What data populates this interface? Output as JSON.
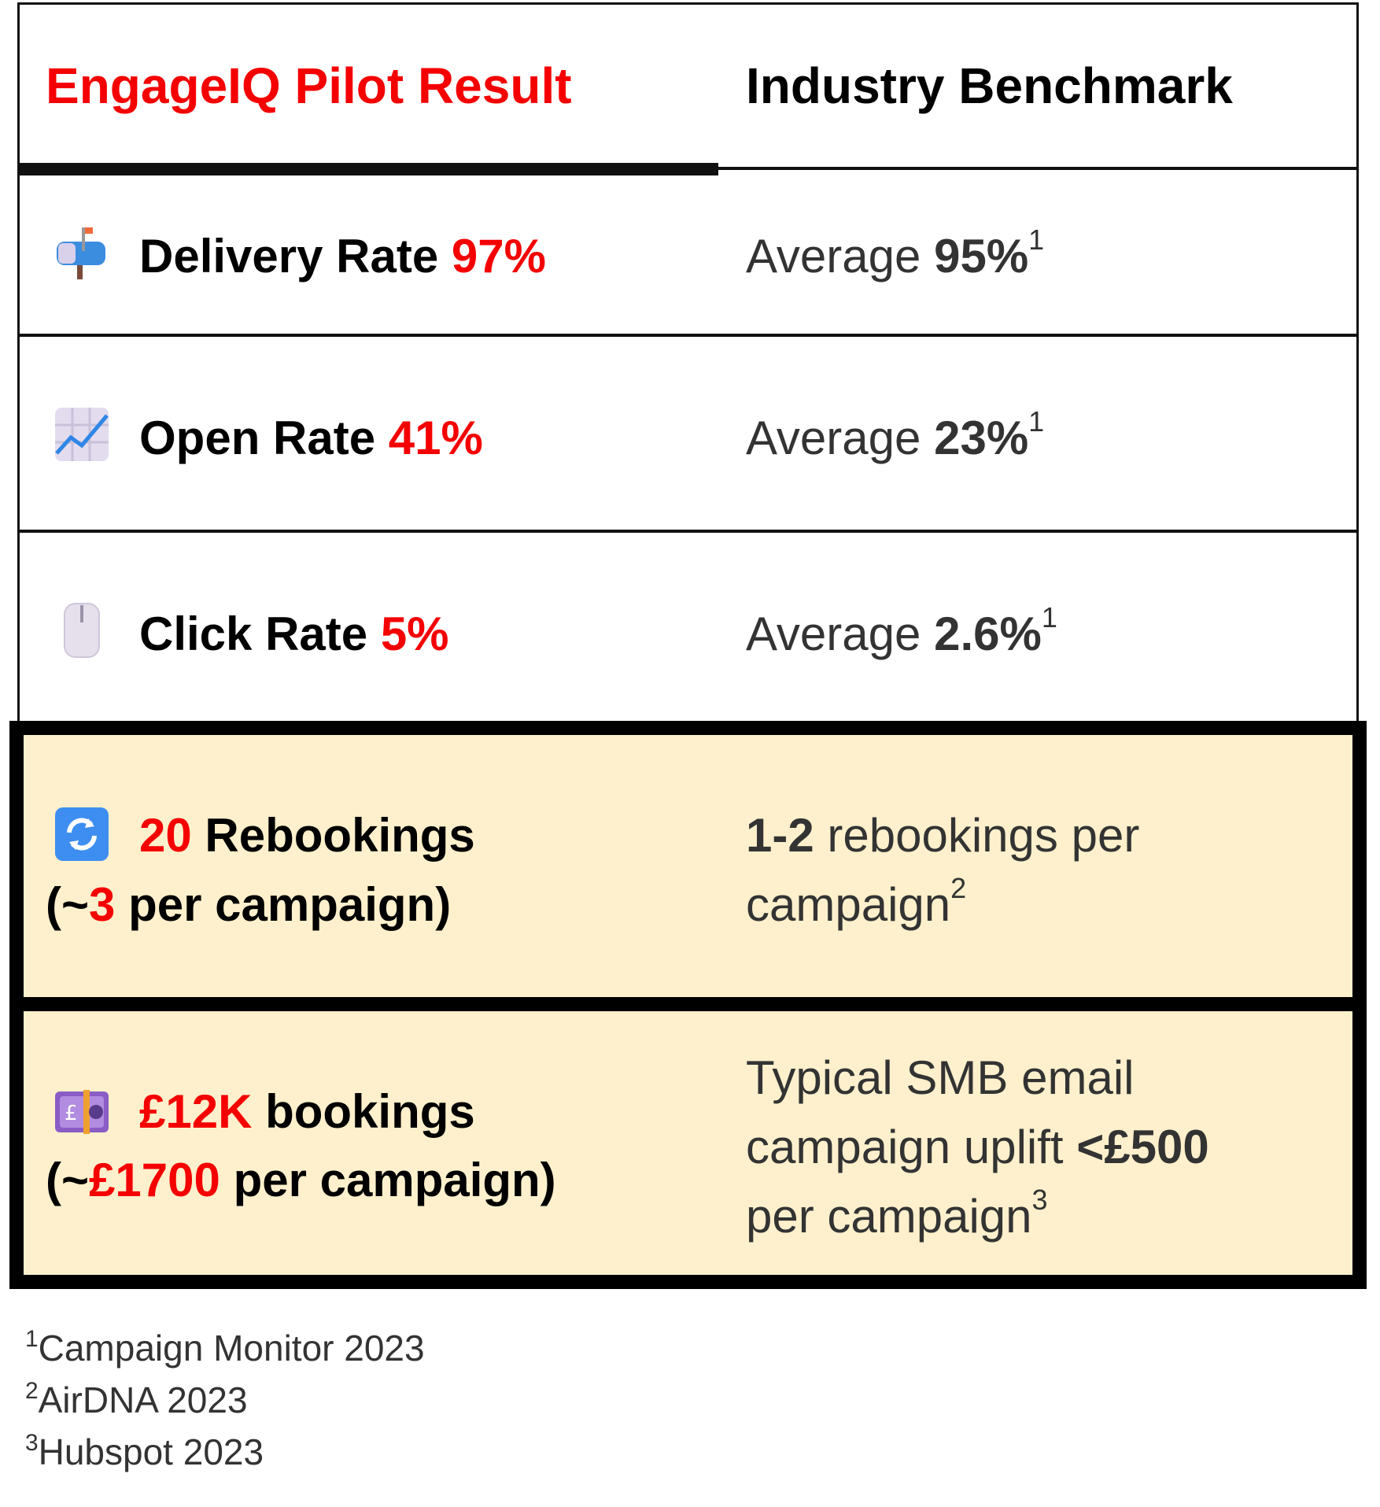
{
  "header": {
    "left_title": "EngageIQ Pilot Result",
    "right_title": "Industry Benchmark"
  },
  "rows": [
    {
      "icon": "mailbox-icon",
      "label": "Delivery Rate",
      "value": "97%",
      "bench_prefix": "Average",
      "bench_value": "95%",
      "bench_note": "1"
    },
    {
      "icon": "chart-increasing-icon",
      "label": "Open Rate",
      "value": "41%",
      "bench_prefix": "Average",
      "bench_value": "23%",
      "bench_note": "1"
    },
    {
      "icon": "computer-mouse-icon",
      "label": "Click Rate",
      "value": "5%",
      "bench_prefix": "Average",
      "bench_value": "2.6%",
      "bench_note": "1"
    }
  ],
  "highlights": [
    {
      "icon": "arrows-cycle-icon",
      "value": "20",
      "label": "Rebookings",
      "line2_open": "(~",
      "line2_value": "3",
      "line2_rest": "per campaign)",
      "bench_bold": "1-2",
      "bench_text1": "rebookings per",
      "bench_text2": "campaign",
      "bench_note": "2"
    },
    {
      "icon": "pound-banknote-icon",
      "value": "£12K",
      "label": "bookings",
      "line2_open": "(~",
      "line2_value": "£1700",
      "line2_rest": "per campaign)",
      "bench_text1": "Typical SMB email",
      "bench_text2a": "campaign uplift",
      "bench_bold": "<£500",
      "bench_text3": "per campaign",
      "bench_note": "3"
    }
  ],
  "footnotes": [
    {
      "num": "1",
      "text": "Campaign Monitor 2023"
    },
    {
      "num": "2",
      "text": "AirDNA 2023"
    },
    {
      "num": "3",
      "text": "Hubspot 2023"
    }
  ],
  "colors": {
    "accent": "#f40000",
    "highlight_bg": "#fef0cc",
    "border": "#000000"
  }
}
